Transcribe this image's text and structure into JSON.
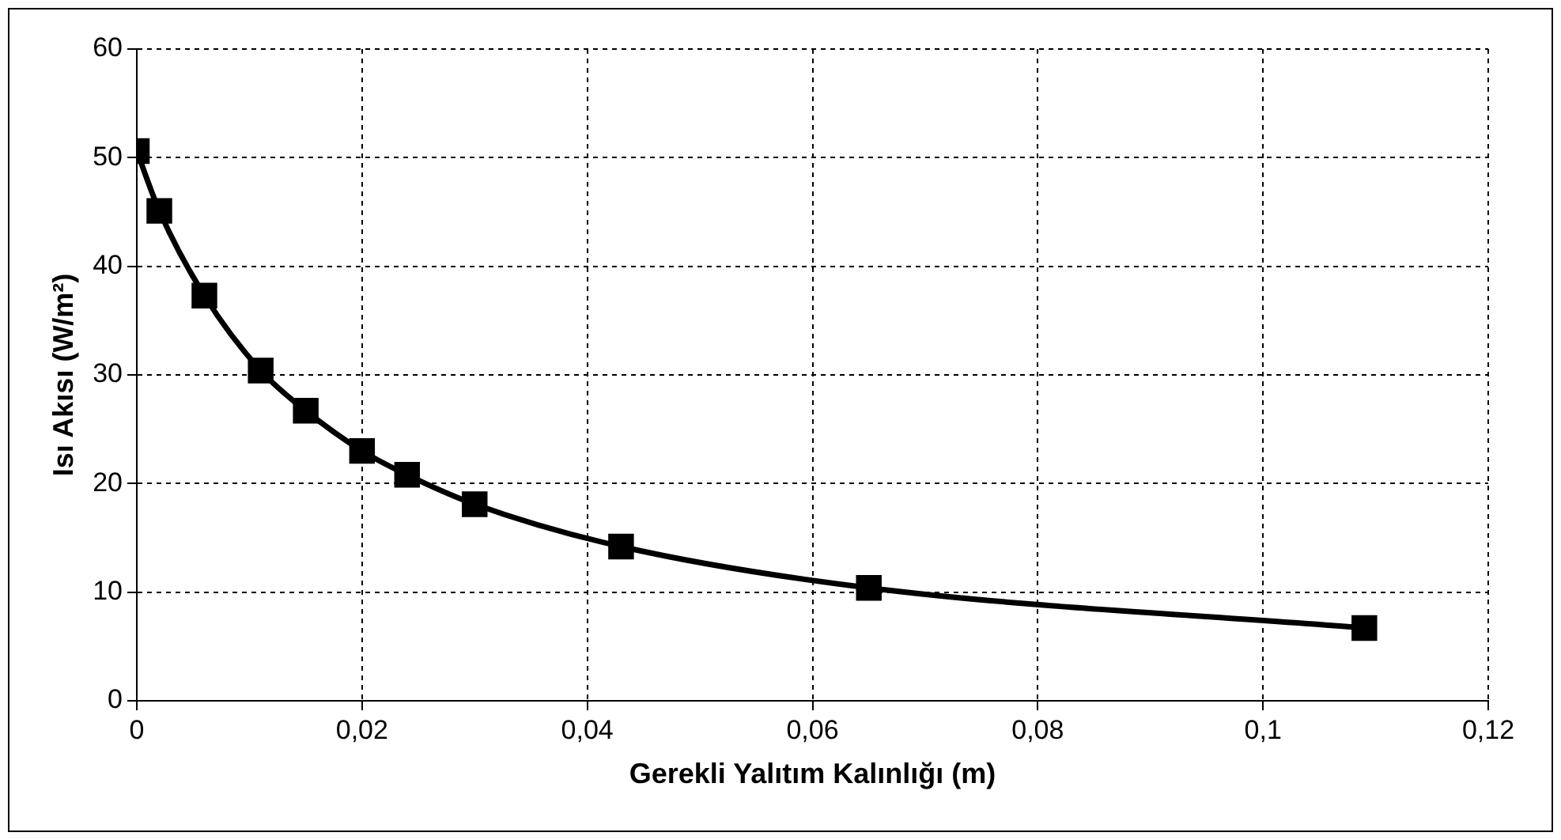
{
  "chart_data": {
    "type": "line",
    "xlabel": "Gerekli Yalıtım Kalınlığı (m)",
    "ylabel": "Isı Akısı (W/m²)",
    "x": [
      0,
      0.002,
      0.006,
      0.011,
      0.015,
      0.02,
      0.024,
      0.03,
      0.043,
      0.065,
      0.109
    ],
    "series": [
      {
        "color": "#000000",
        "values": [
          50.6,
          45.1,
          37.3,
          30.4,
          26.7,
          23.0,
          20.8,
          18.1,
          14.2,
          10.4,
          6.7
        ]
      }
    ],
    "xlim": [
      0,
      0.12
    ],
    "xticks": [
      0,
      {
        "value": 0.02,
        "label": "0,02"
      },
      {
        "value": 0.04,
        "label": "0,04"
      },
      {
        "value": 0.06,
        "label": "0,06"
      },
      {
        "value": 0.08,
        "label": "0,08"
      },
      {
        "value": 0.1,
        "label": "0,1"
      },
      {
        "value": 0.12,
        "label": "0,12"
      }
    ],
    "ylim": [
      0,
      60
    ],
    "yticks": [
      0,
      10,
      20,
      30,
      40,
      50,
      60
    ],
    "grid": true,
    "legend": false,
    "marker": "square",
    "line_style": "solid"
  }
}
